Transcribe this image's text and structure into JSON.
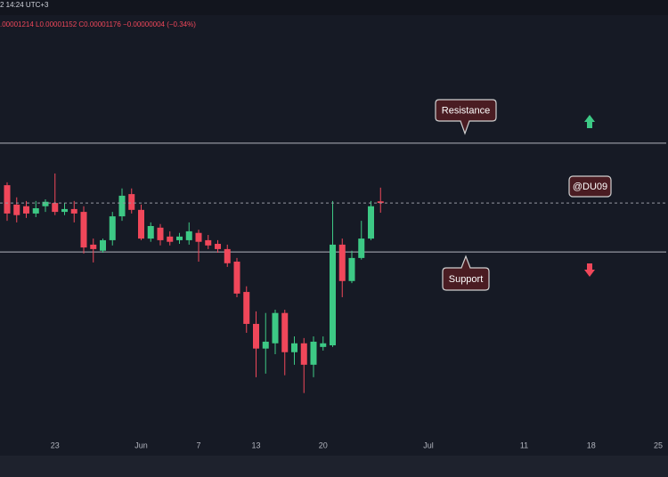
{
  "chart_data": {
    "type": "candlestick",
    "info_time": "2 14:24 UTC+3",
    "info_ohlc": ".00001214 L0.00001152 C0.00001176 −0.00000004 (−0.34%)",
    "annotations": [
      "Resistance",
      "@DU09",
      "Support"
    ],
    "categories": [
      null,
      null,
      null,
      null,
      null,
      "23",
      null,
      null,
      null,
      null,
      null,
      null,
      null,
      null,
      "Jun",
      null,
      null,
      null,
      null,
      null,
      "7",
      null,
      null,
      null,
      null,
      null,
      "13",
      null,
      null,
      null,
      null,
      null,
      null,
      "20",
      null,
      null,
      null,
      null,
      null,
      null,
      null,
      null,
      null,
      null,
      "Jul",
      null,
      null,
      null,
      null,
      null,
      null,
      null,
      null,
      null,
      "11",
      null,
      null,
      null,
      null,
      null,
      null,
      "18",
      null,
      null,
      null,
      null,
      null,
      null,
      "25"
    ],
    "open": [
      1.22e-05,
      1.172e-05,
      1.168e-05,
      1.15e-05,
      1.168e-05,
      1.176e-05,
      1.154e-05,
      1.161e-05,
      1.154e-05,
      1.073e-05,
      1.058e-05,
      1.084e-05,
      1.143e-05,
      1.198e-05,
      1.159e-05,
      1.088e-05,
      1.115e-05,
      1.093e-05,
      1.084e-05,
      1.084e-05,
      1.102e-05,
      1.084e-05,
      1.075e-05,
      1.062e-05,
      1.031e-05,
      9.56e-06,
      8.77e-06,
      8.16e-06,
      8.29e-06,
      9.04e-06,
      8.07e-06,
      8.29e-06,
      7.76e-06,
      8.2e-06,
      8.24e-06,
      1.073e-05,
      9.83e-06,
      1.04e-05,
      1.088e-05,
      1.18e-05,
      null,
      null,
      null,
      null,
      null,
      null,
      null,
      null,
      null,
      null,
      null,
      null,
      null,
      null,
      null,
      null,
      null,
      null,
      null,
      null,
      null,
      null,
      null,
      null,
      null,
      null,
      null,
      null,
      null
    ],
    "high": [
      1.227e-05,
      1.19e-05,
      1.181e-05,
      1.181e-05,
      1.185e-05,
      1.249e-05,
      1.176e-05,
      1.181e-05,
      1.168e-05,
      1.088e-05,
      1.088e-05,
      1.154e-05,
      1.212e-05,
      1.212e-05,
      1.172e-05,
      1.128e-05,
      1.124e-05,
      1.106e-05,
      1.102e-05,
      1.128e-05,
      1.11e-05,
      1.097e-05,
      1.084e-05,
      1.073e-05,
      1.04e-05,
      9.7e-06,
      9.08e-06,
      9.04e-06,
      9.12e-06,
      9.12e-06,
      8.46e-06,
      8.42e-06,
      8.46e-06,
      8.46e-06,
      1.181e-05,
      1.088e-05,
      1.058e-05,
      1.132e-05,
      1.181e-05,
      1.214e-05,
      null,
      null,
      null,
      null,
      null,
      null,
      null,
      null,
      null,
      null,
      null,
      null,
      null,
      null,
      null,
      null,
      null,
      null,
      null,
      null,
      null,
      null,
      null,
      null,
      null,
      null,
      null,
      null,
      null
    ],
    "low": [
      1.132e-05,
      1.128e-05,
      1.139e-05,
      1.141e-05,
      1.154e-05,
      1.146e-05,
      1.146e-05,
      1.128e-05,
      1.051e-05,
      1.029e-05,
      1.053e-05,
      1.071e-05,
      1.132e-05,
      1.15e-05,
      1.084e-05,
      1.08e-05,
      1.071e-05,
      1.071e-05,
      1.075e-05,
      1.073e-05,
      1.031e-05,
      1.062e-05,
      1.053e-05,
      1.018e-05,
      9.43e-06,
      8.55e-06,
      7.45e-06,
      7.54e-06,
      8.02e-06,
      7.5e-06,
      7.76e-06,
      7.06e-06,
      7.45e-06,
      8.11e-06,
      8.2e-06,
      9.43e-06,
      9.78e-06,
      1.036e-05,
      1.084e-05,
      1.152e-05,
      null,
      null,
      null,
      null,
      null,
      null,
      null,
      null,
      null,
      null,
      null,
      null,
      null,
      null,
      null,
      null,
      null,
      null,
      null,
      null,
      null,
      null,
      null,
      null,
      null,
      null,
      null,
      null,
      null
    ],
    "close": [
      1.15e-05,
      1.146e-05,
      1.15e-05,
      1.163e-05,
      1.179e-05,
      1.154e-05,
      1.161e-05,
      1.15e-05,
      1.066e-05,
      1.062e-05,
      1.084e-05,
      1.143e-05,
      1.194e-05,
      1.159e-05,
      1.088e-05,
      1.119e-05,
      1.084e-05,
      1.08e-05,
      1.093e-05,
      1.106e-05,
      1.08e-05,
      1.071e-05,
      1.062e-05,
      1.027e-05,
      9.52e-06,
      8.77e-06,
      8.16e-06,
      8.33e-06,
      9.04e-06,
      8.07e-06,
      8.29e-06,
      7.76e-06,
      8.33e-06,
      8.29e-06,
      1.073e-05,
      9.83e-06,
      1.04e-05,
      1.088e-05,
      1.168e-05,
      1.176e-05,
      null,
      null,
      null,
      null,
      null,
      null,
      null,
      null,
      null,
      null,
      null,
      null,
      null,
      null,
      null,
      null,
      null,
      null,
      null,
      null,
      null,
      null,
      null,
      null,
      null,
      null,
      null,
      null,
      null
    ],
    "up_color": "#3dc985",
    "down_color": "#f0475a",
    "hlines": [
      1.324e-05,
      1.055e-05
    ],
    "last_price_line": true,
    "ylim": [
      6.04e-06,
      1.634e-05
    ]
  }
}
